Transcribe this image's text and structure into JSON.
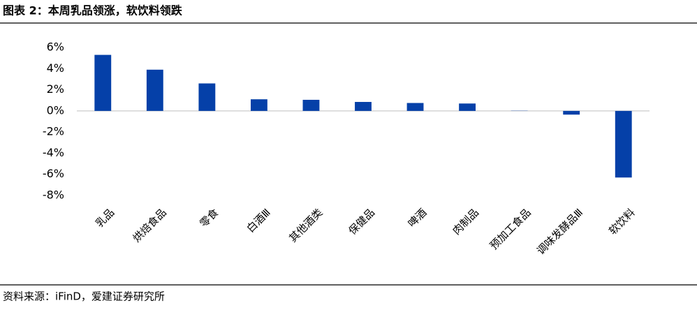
{
  "header": {
    "title": "图表 2：本周乳品领涨，软饮料领跌"
  },
  "chart_data": {
    "type": "bar",
    "categories": [
      "乳品",
      "烘焙食品",
      "零食",
      "白酒Ⅲ",
      "其他酒类",
      "保健品",
      "啤酒",
      "肉制品",
      "预加工食品",
      "调味发酵品Ⅲ",
      "软饮料"
    ],
    "values": [
      5.3,
      3.9,
      2.6,
      1.1,
      1.05,
      0.85,
      0.75,
      0.7,
      0.02,
      -0.35,
      -6.3
    ],
    "color": "#0540a8",
    "ylim": [
      -8,
      6
    ],
    "yticks": [
      {
        "value": -8,
        "label": "-8%"
      },
      {
        "value": -6,
        "label": "-6%"
      },
      {
        "value": -4,
        "label": "-4%"
      },
      {
        "value": -2,
        "label": "-2%"
      },
      {
        "value": 0,
        "label": "0%"
      },
      {
        "value": 2,
        "label": "2%"
      },
      {
        "value": 4,
        "label": "4%"
      },
      {
        "value": 6,
        "label": "6%"
      }
    ],
    "grid": false
  },
  "footer": {
    "source": "资料来源：iFinD，爱建证券研究所"
  }
}
